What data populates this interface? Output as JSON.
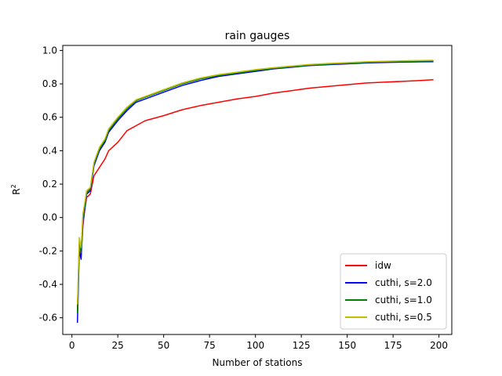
{
  "chart_data": {
    "type": "line",
    "title": "rain gauges",
    "xlabel": "Number of stations",
    "ylabel": "R",
    "ylabel_superscript": "2",
    "xlim": [
      -5,
      207
    ],
    "ylim": [
      -0.7,
      1.03
    ],
    "xticks": [
      0,
      25,
      50,
      75,
      100,
      125,
      150,
      175,
      200
    ],
    "yticks": [
      -0.6,
      -0.4,
      -0.2,
      0.0,
      0.2,
      0.4,
      0.6,
      0.8,
      1.0
    ],
    "ytick_labels": [
      "-0.6",
      "-0.4",
      "-0.2",
      "0.0",
      "0.2",
      "0.4",
      "0.6",
      "0.8",
      "1.0"
    ],
    "legend_position": "lower-right",
    "x": [
      3,
      4,
      5,
      6,
      7,
      8,
      10,
      12,
      15,
      18,
      20,
      25,
      30,
      35,
      40,
      50,
      60,
      70,
      80,
      90,
      100,
      110,
      120,
      130,
      140,
      150,
      160,
      170,
      180,
      190,
      197
    ],
    "series": [
      {
        "name": "idw",
        "color": "#ff0000",
        "values": [
          -0.55,
          -0.16,
          -0.22,
          -0.05,
          0.05,
          0.12,
          0.14,
          0.25,
          0.3,
          0.35,
          0.4,
          0.45,
          0.52,
          0.55,
          0.58,
          0.61,
          0.645,
          0.67,
          0.69,
          0.71,
          0.725,
          0.745,
          0.76,
          0.775,
          0.785,
          0.795,
          0.805,
          0.81,
          0.815,
          0.82,
          0.825
        ]
      },
      {
        "name": "cuthi, s=2.0",
        "color": "#0000ff",
        "values": [
          -0.63,
          -0.2,
          -0.25,
          -0.02,
          0.05,
          0.14,
          0.16,
          0.31,
          0.4,
          0.45,
          0.51,
          0.58,
          0.64,
          0.69,
          0.71,
          0.75,
          0.79,
          0.82,
          0.845,
          0.86,
          0.875,
          0.89,
          0.9,
          0.91,
          0.915,
          0.92,
          0.925,
          0.928,
          0.93,
          0.932,
          0.933
        ]
      },
      {
        "name": "cuthi, s=1.0",
        "color": "#008000",
        "values": [
          -0.57,
          -0.16,
          -0.21,
          0.0,
          0.07,
          0.15,
          0.17,
          0.32,
          0.41,
          0.46,
          0.52,
          0.59,
          0.65,
          0.7,
          0.72,
          0.76,
          0.8,
          0.83,
          0.85,
          0.865,
          0.88,
          0.893,
          0.903,
          0.912,
          0.918,
          0.923,
          0.928,
          0.931,
          0.934,
          0.936,
          0.937
        ]
      },
      {
        "name": "cuthi, s=0.5",
        "color": "#bfbf00",
        "values": [
          -0.52,
          -0.12,
          -0.18,
          0.02,
          0.09,
          0.16,
          0.18,
          0.33,
          0.42,
          0.47,
          0.53,
          0.6,
          0.66,
          0.705,
          0.725,
          0.765,
          0.805,
          0.835,
          0.855,
          0.87,
          0.885,
          0.897,
          0.907,
          0.916,
          0.922,
          0.927,
          0.932,
          0.935,
          0.938,
          0.94,
          0.941
        ]
      }
    ]
  }
}
